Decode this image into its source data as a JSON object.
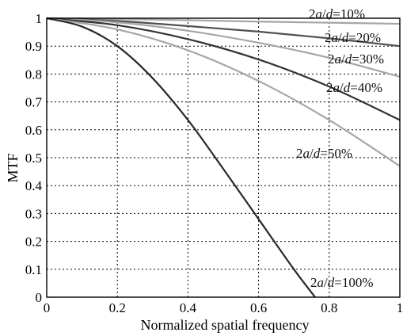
{
  "chart_data": {
    "type": "line",
    "xlabel": "Normalized spatial frequency",
    "ylabel": "MTF",
    "xlim": [
      0,
      1
    ],
    "ylim": [
      0,
      1
    ],
    "grid": true,
    "x_ticks": [
      0,
      0.2,
      0.4,
      0.6,
      0.8,
      1
    ],
    "x_tick_labels": [
      "0",
      "0.2",
      "0.4",
      "0.6",
      "0.8",
      "1"
    ],
    "y_ticks": [
      0,
      0.1,
      0.2,
      0.3,
      0.4,
      0.5,
      0.6,
      0.7,
      0.8,
      0.9,
      1
    ],
    "y_tick_labels": [
      "0",
      "0.1",
      "0.2",
      "0.3",
      "0.4",
      "0.5",
      "0.6",
      "0.7",
      "0.8",
      "0.9",
      "1"
    ],
    "series": [
      {
        "name": "2a/d=10%",
        "label_parts": [
          "2",
          "a",
          "/",
          "d",
          "=10%"
        ],
        "color": "#a6a6a6",
        "x": [
          0,
          0.2,
          0.4,
          0.6,
          0.8,
          1
        ],
        "y": [
          1,
          0.997,
          0.993,
          0.988,
          0.984,
          0.98
        ]
      },
      {
        "name": "2a/d=20%",
        "label_parts": [
          "2",
          "a",
          "/",
          "d",
          "=20%"
        ],
        "color": "#505050",
        "x": [
          0,
          0.2,
          0.4,
          0.6,
          0.8,
          1
        ],
        "y": [
          1,
          0.99,
          0.972,
          0.952,
          0.928,
          0.9
        ]
      },
      {
        "name": "2a/d=30%",
        "label_parts": [
          "2",
          "a",
          "/",
          "d",
          "=30%"
        ],
        "color": "#a6a6a6",
        "x": [
          0,
          0.2,
          0.4,
          0.6,
          0.8,
          1
        ],
        "y": [
          1,
          0.985,
          0.955,
          0.912,
          0.858,
          0.79
        ]
      },
      {
        "name": "2a/d=40%",
        "label_parts": [
          "2",
          "a",
          "/",
          "d",
          "=40%"
        ],
        "color": "#333333",
        "x": [
          0,
          0.2,
          0.4,
          0.6,
          0.8,
          1
        ],
        "y": [
          1,
          0.975,
          0.925,
          0.852,
          0.755,
          0.635
        ]
      },
      {
        "name": "2a/d=50%",
        "label_parts": [
          "2",
          "a",
          "/",
          "d",
          "=50%"
        ],
        "color": "#a6a6a6",
        "x": [
          0,
          0.2,
          0.4,
          0.6,
          0.8,
          1
        ],
        "y": [
          1,
          0.96,
          0.885,
          0.775,
          0.635,
          0.47
        ]
      },
      {
        "name": "2a/d=100%",
        "label_parts": [
          "2",
          "a",
          "/",
          "d",
          "=100%"
        ],
        "color": "#2a2a2a",
        "x": [
          0,
          0.1,
          0.2,
          0.3,
          0.4,
          0.5,
          0.6,
          0.7,
          0.76
        ],
        "y": [
          1,
          0.97,
          0.9,
          0.785,
          0.635,
          0.46,
          0.28,
          0.1,
          0
        ]
      }
    ]
  }
}
